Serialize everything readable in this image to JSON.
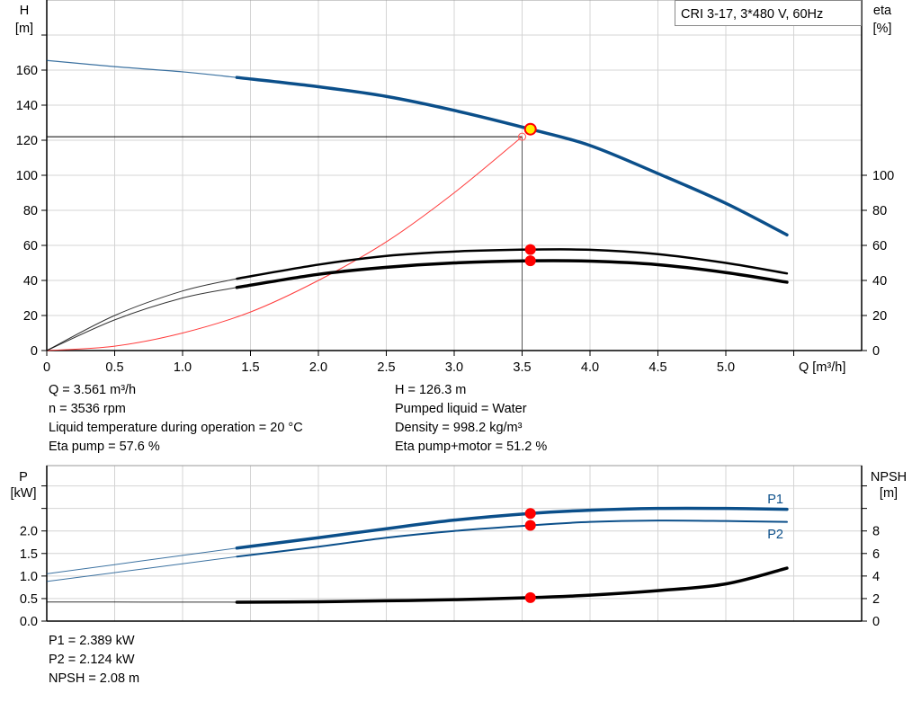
{
  "chart_data": [
    {
      "type": "line",
      "legend_box": "CRI 3-17, 3*480 V, 60Hz",
      "xlabel": "Q [m³/h]",
      "ylabel_left": [
        "H",
        "[m]"
      ],
      "ylabel_right": [
        "eta",
        "[%]"
      ],
      "xlim": [
        0,
        6
      ],
      "ylim_left": [
        0,
        200
      ],
      "ylim_right": [
        0,
        200
      ],
      "x_ticks": [
        "0",
        "0.5",
        "1.0",
        "1.5",
        "2.0",
        "2.5",
        "3.0",
        "3.5",
        "4.0",
        "4.5",
        "5.0"
      ],
      "y_ticks_left": [
        "0",
        "20",
        "40",
        "60",
        "80",
        "100",
        "120",
        "140",
        "160"
      ],
      "y_ticks_right": [
        "0",
        "20",
        "40",
        "60",
        "80",
        "100"
      ],
      "grid": true,
      "colors": {
        "head": "#0b4f8a",
        "eta": "#000000",
        "system": "#ff3b3b",
        "marker": "#ff0000",
        "operating_point": "#ffee00"
      },
      "series": [
        {
          "id": "head",
          "axis": "left",
          "thin_until": 1.4,
          "x": [
            0,
            0.5,
            1.0,
            1.4,
            2.0,
            2.5,
            3.0,
            3.561,
            4.0,
            4.5,
            5.0,
            5.45
          ],
          "y": [
            165.5,
            162,
            159,
            155.8,
            150.5,
            145,
            137,
            126.3,
            117,
            101,
            84,
            66
          ]
        },
        {
          "id": "eta-pump",
          "axis": "right",
          "thin_until": 1.4,
          "x": [
            0,
            0.5,
            1.0,
            1.4,
            2.0,
            2.5,
            3.0,
            3.561,
            4.0,
            4.5,
            5.0,
            5.45
          ],
          "y": [
            0,
            20,
            34,
            41,
            49,
            54,
            56.5,
            57.6,
            57.5,
            55,
            50,
            44
          ]
        },
        {
          "id": "eta-pump-motor",
          "axis": "right",
          "thin_until": 1.4,
          "x": [
            0,
            0.5,
            1.0,
            1.4,
            2.0,
            2.5,
            3.0,
            3.561,
            4.0,
            4.5,
            5.0,
            5.45
          ],
          "y": [
            0,
            17.5,
            30,
            36,
            43.5,
            47.5,
            50,
            51.2,
            51,
            49,
            44.5,
            39
          ]
        },
        {
          "id": "system-curve",
          "axis": "left",
          "x": [
            0,
            0.5,
            1.0,
            1.5,
            2.0,
            2.5,
            3.0,
            3.5
          ],
          "y": [
            0,
            2.5,
            10,
            22,
            40,
            62,
            90,
            122
          ]
        }
      ],
      "operating_point": {
        "q": 3.561,
        "h": 126.3,
        "eta_pump": 57.6,
        "eta_pump_motor": 51.2
      },
      "requested_point": {
        "q": 3.5,
        "h": 122
      }
    },
    {
      "type": "line",
      "ylabel_left": [
        "P",
        "[kW]"
      ],
      "ylabel_right": [
        "NPSH",
        "[m]"
      ],
      "xlim": [
        0,
        6
      ],
      "ylim_left": [
        0,
        3.45
      ],
      "ylim_right": [
        0,
        13.8
      ],
      "y_ticks_left": [
        "0.0",
        "0.5",
        "1.0",
        "1.5",
        "2.0"
      ],
      "y_ticks_right": [
        "0",
        "2",
        "4",
        "6",
        "8"
      ],
      "grid": true,
      "series": [
        {
          "id": "p1",
          "name": "P1",
          "axis": "left",
          "thin_until": 1.4,
          "x": [
            0,
            1.4,
            2.0,
            2.5,
            3.0,
            3.561,
            4.0,
            4.5,
            5.0,
            5.45
          ],
          "y": [
            1.05,
            1.62,
            1.85,
            2.05,
            2.24,
            2.389,
            2.46,
            2.5,
            2.5,
            2.48
          ]
        },
        {
          "id": "p2",
          "name": "P2",
          "axis": "left",
          "thin_until": 1.4,
          "x": [
            0,
            1.4,
            2.0,
            2.5,
            3.0,
            3.561,
            4.0,
            4.5,
            5.0,
            5.45
          ],
          "y": [
            0.88,
            1.43,
            1.65,
            1.85,
            2.0,
            2.124,
            2.2,
            2.23,
            2.22,
            2.2
          ]
        },
        {
          "id": "npsh",
          "axis": "right",
          "thin_until": 1.4,
          "x": [
            0,
            1.4,
            2.0,
            2.5,
            3.0,
            3.561,
            4.0,
            4.5,
            5.0,
            5.45
          ],
          "y": [
            1.7,
            1.68,
            1.72,
            1.8,
            1.9,
            2.08,
            2.3,
            2.7,
            3.3,
            4.7
          ]
        }
      ],
      "operating_point": {
        "q": 3.561,
        "p1": 2.389,
        "p2": 2.124,
        "npsh": 2.08
      }
    }
  ],
  "readout_top": {
    "left": [
      "Q = 3.561 m³/h",
      "n = 3536 rpm",
      "Liquid temperature during operation = 20 °C",
      "Eta pump = 57.6 %"
    ],
    "right": [
      "H = 126.3 m",
      "Pumped liquid = Water",
      "Density = 998.2 kg/m³",
      "Eta pump+motor = 51.2 %"
    ]
  },
  "readout_bottom": [
    "P1 = 2.389 kW",
    "P2 = 2.124 kW",
    "NPSH = 2.08 m"
  ]
}
